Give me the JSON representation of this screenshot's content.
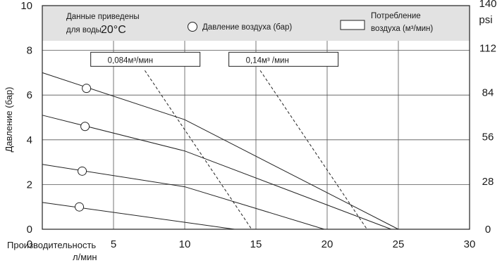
{
  "chart_data": {
    "type": "line",
    "xlabel_line1": "Производительность",
    "xlabel_line2": "л/мин",
    "ylabel": "Давление (бар)",
    "y2label": "psi",
    "xlim": [
      0,
      30
    ],
    "ylim": [
      0,
      10
    ],
    "x_ticks": [
      {
        "v": 5,
        "label": "5"
      },
      {
        "v": 10,
        "label": "10"
      },
      {
        "v": 15,
        "label": "15"
      },
      {
        "v": 20,
        "label": "20"
      },
      {
        "v": 25,
        "label": "25"
      },
      {
        "v": 30,
        "label": "30"
      }
    ],
    "x_zero_label": "0",
    "y_ticks": [
      {
        "v": 0,
        "label": "0"
      },
      {
        "v": 2,
        "label": "2"
      },
      {
        "v": 4,
        "label": "4"
      },
      {
        "v": 6,
        "label": "6"
      },
      {
        "v": 8,
        "label": "8"
      },
      {
        "v": 10,
        "label": "10"
      }
    ],
    "y2_ticks": [
      {
        "v": 0,
        "label": "0"
      },
      {
        "v": 2.14,
        "label": "28"
      },
      {
        "v": 4.13,
        "label": "56"
      },
      {
        "v": 6.12,
        "label": "84"
      },
      {
        "v": 8.1,
        "label": "112"
      },
      {
        "v": 10.09,
        "label": "140"
      }
    ],
    "grid": true,
    "legend": {
      "note_line1": "Данные приведены",
      "note_line2": "для воды",
      "note_temp": "20°C",
      "circle_label": "Давление воздуха (бар)",
      "rect_label_line1": "Потребление",
      "rect_label_line2": "воздуха (м³/мин)"
    },
    "series": [
      {
        "air_pressure": 6.3,
        "points": [
          [
            0,
            7.0
          ],
          [
            10,
            4.9
          ],
          [
            25,
            0
          ]
        ]
      },
      {
        "air_pressure": 4.6,
        "points": [
          [
            0,
            5.1
          ],
          [
            10,
            3.5
          ],
          [
            24.5,
            0
          ]
        ]
      },
      {
        "air_pressure": 2.6,
        "points": [
          [
            0,
            2.9
          ],
          [
            10,
            1.9
          ],
          [
            19.8,
            0
          ]
        ]
      },
      {
        "air_pressure": 1.0,
        "points": [
          [
            0,
            1.2
          ],
          [
            13.5,
            0
          ]
        ]
      }
    ],
    "markers": [
      {
        "x": 3.1,
        "y": 6.3
      },
      {
        "x": 3.0,
        "y": 4.6
      },
      {
        "x": 2.8,
        "y": 2.6
      },
      {
        "x": 2.6,
        "y": 1.0
      }
    ],
    "air_consumption": [
      {
        "label": "0,084м³/мин",
        "box": [
          3.4,
          7.6
        ],
        "line_from": [
          7.2,
          7.1
        ],
        "line_to": [
          14.7,
          0
        ]
      },
      {
        "label": "0,14м³ /мин",
        "box": [
          13.1,
          7.6
        ],
        "line_from": [
          15.3,
          7.1
        ],
        "line_to": [
          22.8,
          0
        ]
      }
    ]
  }
}
